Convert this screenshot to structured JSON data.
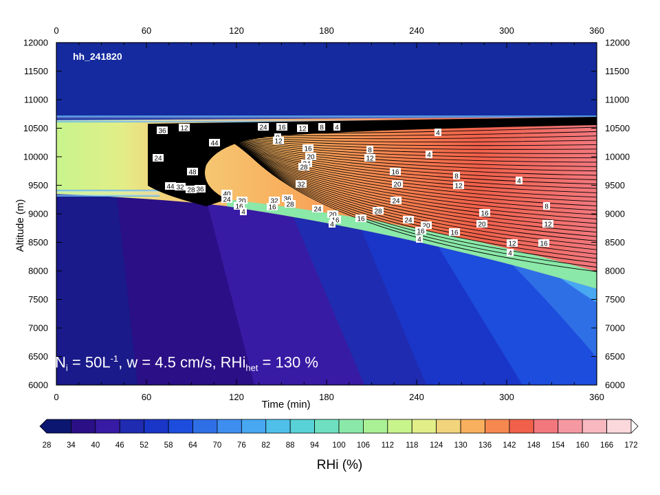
{
  "chart_data": {
    "type": "heatmap",
    "panel_id": "hh_241820",
    "xlabel": "Time (min)",
    "ylabel": "Altitude (m)",
    "xlim": [
      0,
      360
    ],
    "ylim": [
      6000,
      12000
    ],
    "x_ticks": [
      0,
      60,
      120,
      180,
      240,
      300,
      360
    ],
    "y_ticks": [
      6000,
      6500,
      7000,
      7500,
      8000,
      8500,
      9000,
      9500,
      10000,
      10500,
      11000,
      11500,
      12000
    ],
    "colorbar": {
      "label": "RHi (%)",
      "levels": [
        28,
        34,
        40,
        46,
        52,
        58,
        64,
        70,
        76,
        82,
        88,
        94,
        100,
        106,
        112,
        118,
        124,
        130,
        136,
        142,
        148,
        154,
        160,
        166,
        172
      ],
      "colors": [
        "#0b1670",
        "#2a0f86",
        "#381ba4",
        "#1f2bb0",
        "#1a36c8",
        "#1d4ddc",
        "#2f6fe6",
        "#3e8ef0",
        "#48a8f2",
        "#4fc0ea",
        "#58d2d6",
        "#6ee0c0",
        "#8ae8a8",
        "#aaf095",
        "#c8f48c",
        "#e2ee88",
        "#f2d47c",
        "#f8b05e",
        "#f68850",
        "#f0604a",
        "#f2787e",
        "#f598a2",
        "#f8b8c0",
        "#fad8dc"
      ]
    },
    "contour_labels": [
      "4",
      "8",
      "12",
      "16",
      "20",
      "24",
      "28",
      "32",
      "36",
      "40",
      "44",
      "48"
    ],
    "annotation": {
      "n_main": "N",
      "n_sub": "i",
      "eq1": " = 50L",
      "l_sup": "-1",
      "mid": ", w = 4.5 cm/s, RHi",
      "rhi_sub": "het",
      "end": " = 130 %"
    }
  }
}
